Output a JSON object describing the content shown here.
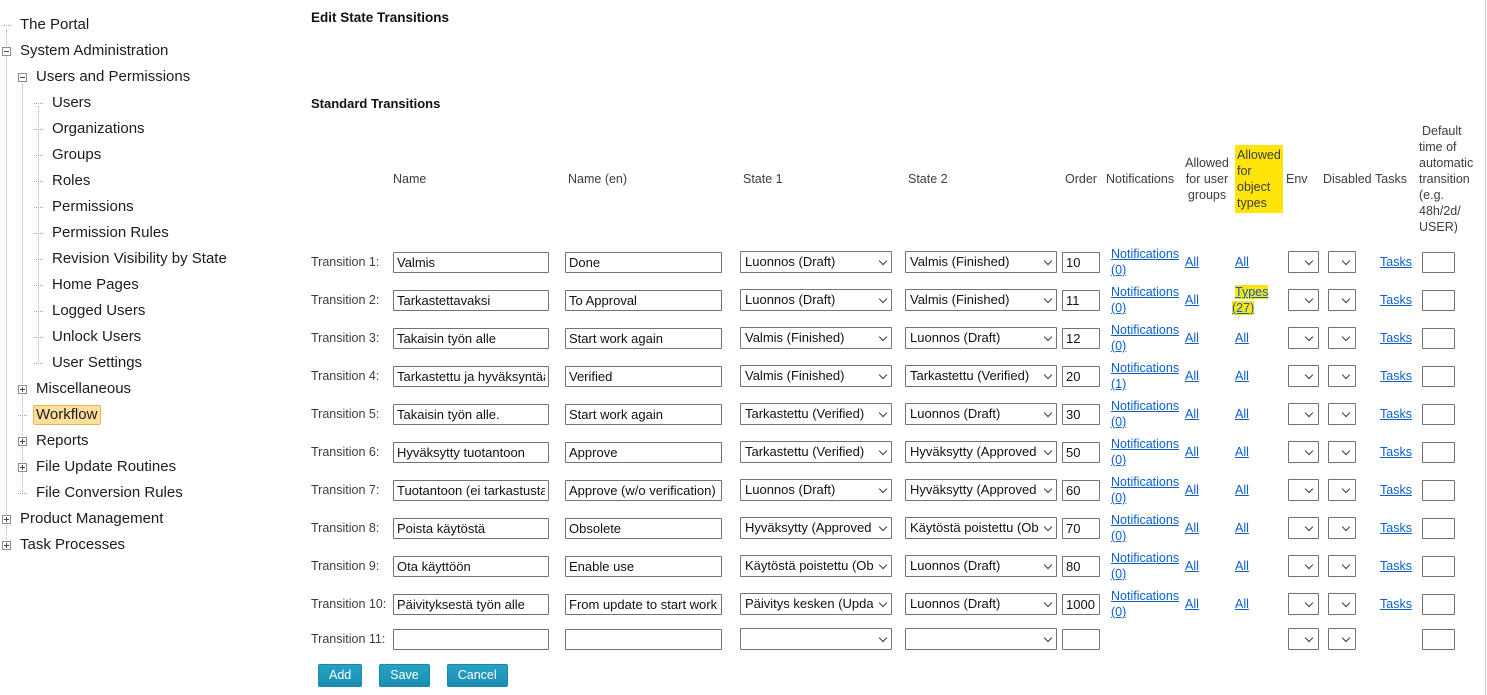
{
  "colors": {
    "highlight_yellow": "#ffe50a",
    "selected_nav_bg": "#fcdf9e",
    "selected_nav_border": "#f0b054",
    "link_blue": "#0b5fce",
    "button_teal": "#1f9cc1"
  },
  "sidebar": {
    "items": [
      {
        "label": "The Portal",
        "level": 0,
        "toggle": "none",
        "selected": false
      },
      {
        "label": "System Administration",
        "level": 0,
        "toggle": "minus",
        "selected": false
      },
      {
        "label": "Users and Permissions",
        "level": 1,
        "toggle": "minus",
        "selected": false
      },
      {
        "label": "Users",
        "level": 2,
        "toggle": "none",
        "selected": false
      },
      {
        "label": "Organizations",
        "level": 2,
        "toggle": "none",
        "selected": false
      },
      {
        "label": "Groups",
        "level": 2,
        "toggle": "none",
        "selected": false
      },
      {
        "label": "Roles",
        "level": 2,
        "toggle": "none",
        "selected": false
      },
      {
        "label": "Permissions",
        "level": 2,
        "toggle": "none",
        "selected": false
      },
      {
        "label": "Permission Rules",
        "level": 2,
        "toggle": "none",
        "selected": false
      },
      {
        "label": "Revision Visibility by State",
        "level": 2,
        "toggle": "none",
        "selected": false
      },
      {
        "label": "Home Pages",
        "level": 2,
        "toggle": "none",
        "selected": false
      },
      {
        "label": "Logged Users",
        "level": 2,
        "toggle": "none",
        "selected": false
      },
      {
        "label": "Unlock Users",
        "level": 2,
        "toggle": "none",
        "selected": false
      },
      {
        "label": "User Settings",
        "level": 2,
        "toggle": "none",
        "selected": false
      },
      {
        "label": "Miscellaneous",
        "level": 1,
        "toggle": "plus",
        "selected": false
      },
      {
        "label": "Workflow",
        "level": 1,
        "toggle": "none",
        "selected": true
      },
      {
        "label": "Reports",
        "level": 1,
        "toggle": "plus",
        "selected": false
      },
      {
        "label": "File Update Routines",
        "level": 1,
        "toggle": "plus",
        "selected": false
      },
      {
        "label": "File Conversion Rules",
        "level": 1,
        "toggle": "none",
        "selected": false
      },
      {
        "label": "Product Management",
        "level": 0,
        "toggle": "plus",
        "selected": false
      },
      {
        "label": "Task Processes",
        "level": 0,
        "toggle": "plus",
        "selected": false
      }
    ]
  },
  "main": {
    "title": "Edit State Transitions",
    "section_title": "Standard Transitions",
    "table": {
      "headers": {
        "name": "Name",
        "name_en": "Name (en)",
        "state1": "State 1",
        "state2": "State 2",
        "order": "Order",
        "notifications": "Notifications",
        "user_groups": "Allowed for user groups",
        "object_types": "Allowed for object types",
        "env": "Env",
        "disabled": "Disabled",
        "tasks": "Tasks",
        "default_time": "Default time of automatic transition (e.g. 48h/2d/ USER)"
      },
      "rows": [
        {
          "label": "Transition 1:",
          "name": "Valmis",
          "name_en": "Done",
          "state1": "Luonnos (Draft)",
          "state2": "Valmis (Finished)",
          "order": "10",
          "notifications": "Notifications (0)",
          "user_groups": "All",
          "object_types": "All",
          "object_types_highlighted": false,
          "env": "",
          "disabled": "",
          "tasks": "Tasks",
          "default_time": ""
        },
        {
          "label": "Transition 2:",
          "name": "Tarkastettavaksi",
          "name_en": "To Approval",
          "state1": "Luonnos (Draft)",
          "state2": "Valmis (Finished)",
          "order": "11",
          "notifications": "Notifications (0)",
          "user_groups": "All",
          "object_types": "Types (27)",
          "object_types_highlighted": true,
          "env": "",
          "disabled": "",
          "tasks": "Tasks",
          "default_time": ""
        },
        {
          "label": "Transition 3:",
          "name": "Takaisin työn alle",
          "name_en": "Start work again",
          "state1": "Valmis (Finished)",
          "state2": "Luonnos (Draft)",
          "order": "12",
          "notifications": "Notifications (0)",
          "user_groups": "All",
          "object_types": "All",
          "object_types_highlighted": false,
          "env": "",
          "disabled": "",
          "tasks": "Tasks",
          "default_time": ""
        },
        {
          "label": "Transition 4:",
          "name": "Tarkastettu ja hyväksyntää",
          "name_en": "Verified",
          "state1": "Valmis (Finished)",
          "state2": "Tarkastettu (Verified)",
          "order": "20",
          "notifications": "Notifications (1)",
          "user_groups": "All",
          "object_types": "All",
          "object_types_highlighted": false,
          "env": "",
          "disabled": "",
          "tasks": "Tasks",
          "default_time": ""
        },
        {
          "label": "Transition 5:",
          "name": "Takaisin työn alle.",
          "name_en": "Start work again",
          "state1": "Tarkastettu (Verified)",
          "state2": "Luonnos (Draft)",
          "order": "30",
          "notifications": "Notifications (0)",
          "user_groups": "All",
          "object_types": "All",
          "object_types_highlighted": false,
          "env": "",
          "disabled": "",
          "tasks": "Tasks",
          "default_time": ""
        },
        {
          "label": "Transition 6:",
          "name": "Hyväksytty tuotantoon",
          "name_en": "Approve",
          "state1": "Tarkastettu (Verified)",
          "state2": "Hyväksytty (Approved",
          "order": "50",
          "notifications": "Notifications (0)",
          "user_groups": "All",
          "object_types": "All",
          "object_types_highlighted": false,
          "env": "",
          "disabled": "",
          "tasks": "Tasks",
          "default_time": ""
        },
        {
          "label": "Transition 7:",
          "name": "Tuotantoon (ei tarkastusta",
          "name_en": "Approve (w/o verification)",
          "state1": "Luonnos (Draft)",
          "state2": "Hyväksytty (Approved",
          "order": "60",
          "notifications": "Notifications (0)",
          "user_groups": "All",
          "object_types": "All",
          "object_types_highlighted": false,
          "env": "",
          "disabled": "",
          "tasks": "Tasks",
          "default_time": ""
        },
        {
          "label": "Transition 8:",
          "name": "Poista käytöstä",
          "name_en": "Obsolete",
          "state1": "Hyväksytty (Approved",
          "state2": "Käytöstä poistettu (Ob",
          "order": "70",
          "notifications": "Notifications (0)",
          "user_groups": "All",
          "object_types": "All",
          "object_types_highlighted": false,
          "env": "",
          "disabled": "",
          "tasks": "Tasks",
          "default_time": ""
        },
        {
          "label": "Transition 9:",
          "name": "Ota käyttöön",
          "name_en": "Enable use",
          "state1": "Käytöstä poistettu (Ob",
          "state2": "Luonnos (Draft)",
          "order": "80",
          "notifications": "Notifications (0)",
          "user_groups": "All",
          "object_types": "All",
          "object_types_highlighted": false,
          "env": "",
          "disabled": "",
          "tasks": "Tasks",
          "default_time": ""
        },
        {
          "label": "Transition 10:",
          "name": "Päivityksestä työn alle",
          "name_en": "From update to start work",
          "state1": "Päivitys kesken (Updat",
          "state2": "Luonnos (Draft)",
          "order": "1000",
          "notifications": "Notifications (0)",
          "user_groups": "All",
          "object_types": "All",
          "object_types_highlighted": false,
          "env": "",
          "disabled": "",
          "tasks": "Tasks",
          "default_time": ""
        },
        {
          "label": "Transition 11:",
          "name": "",
          "name_en": "",
          "state1": "",
          "state2": "",
          "order": "",
          "notifications": null,
          "user_groups": null,
          "object_types": null,
          "object_types_highlighted": false,
          "env": "",
          "disabled": "",
          "tasks": null,
          "default_time": ""
        }
      ]
    },
    "buttons": {
      "add": "Add",
      "save": "Save",
      "cancel": "Cancel"
    }
  }
}
